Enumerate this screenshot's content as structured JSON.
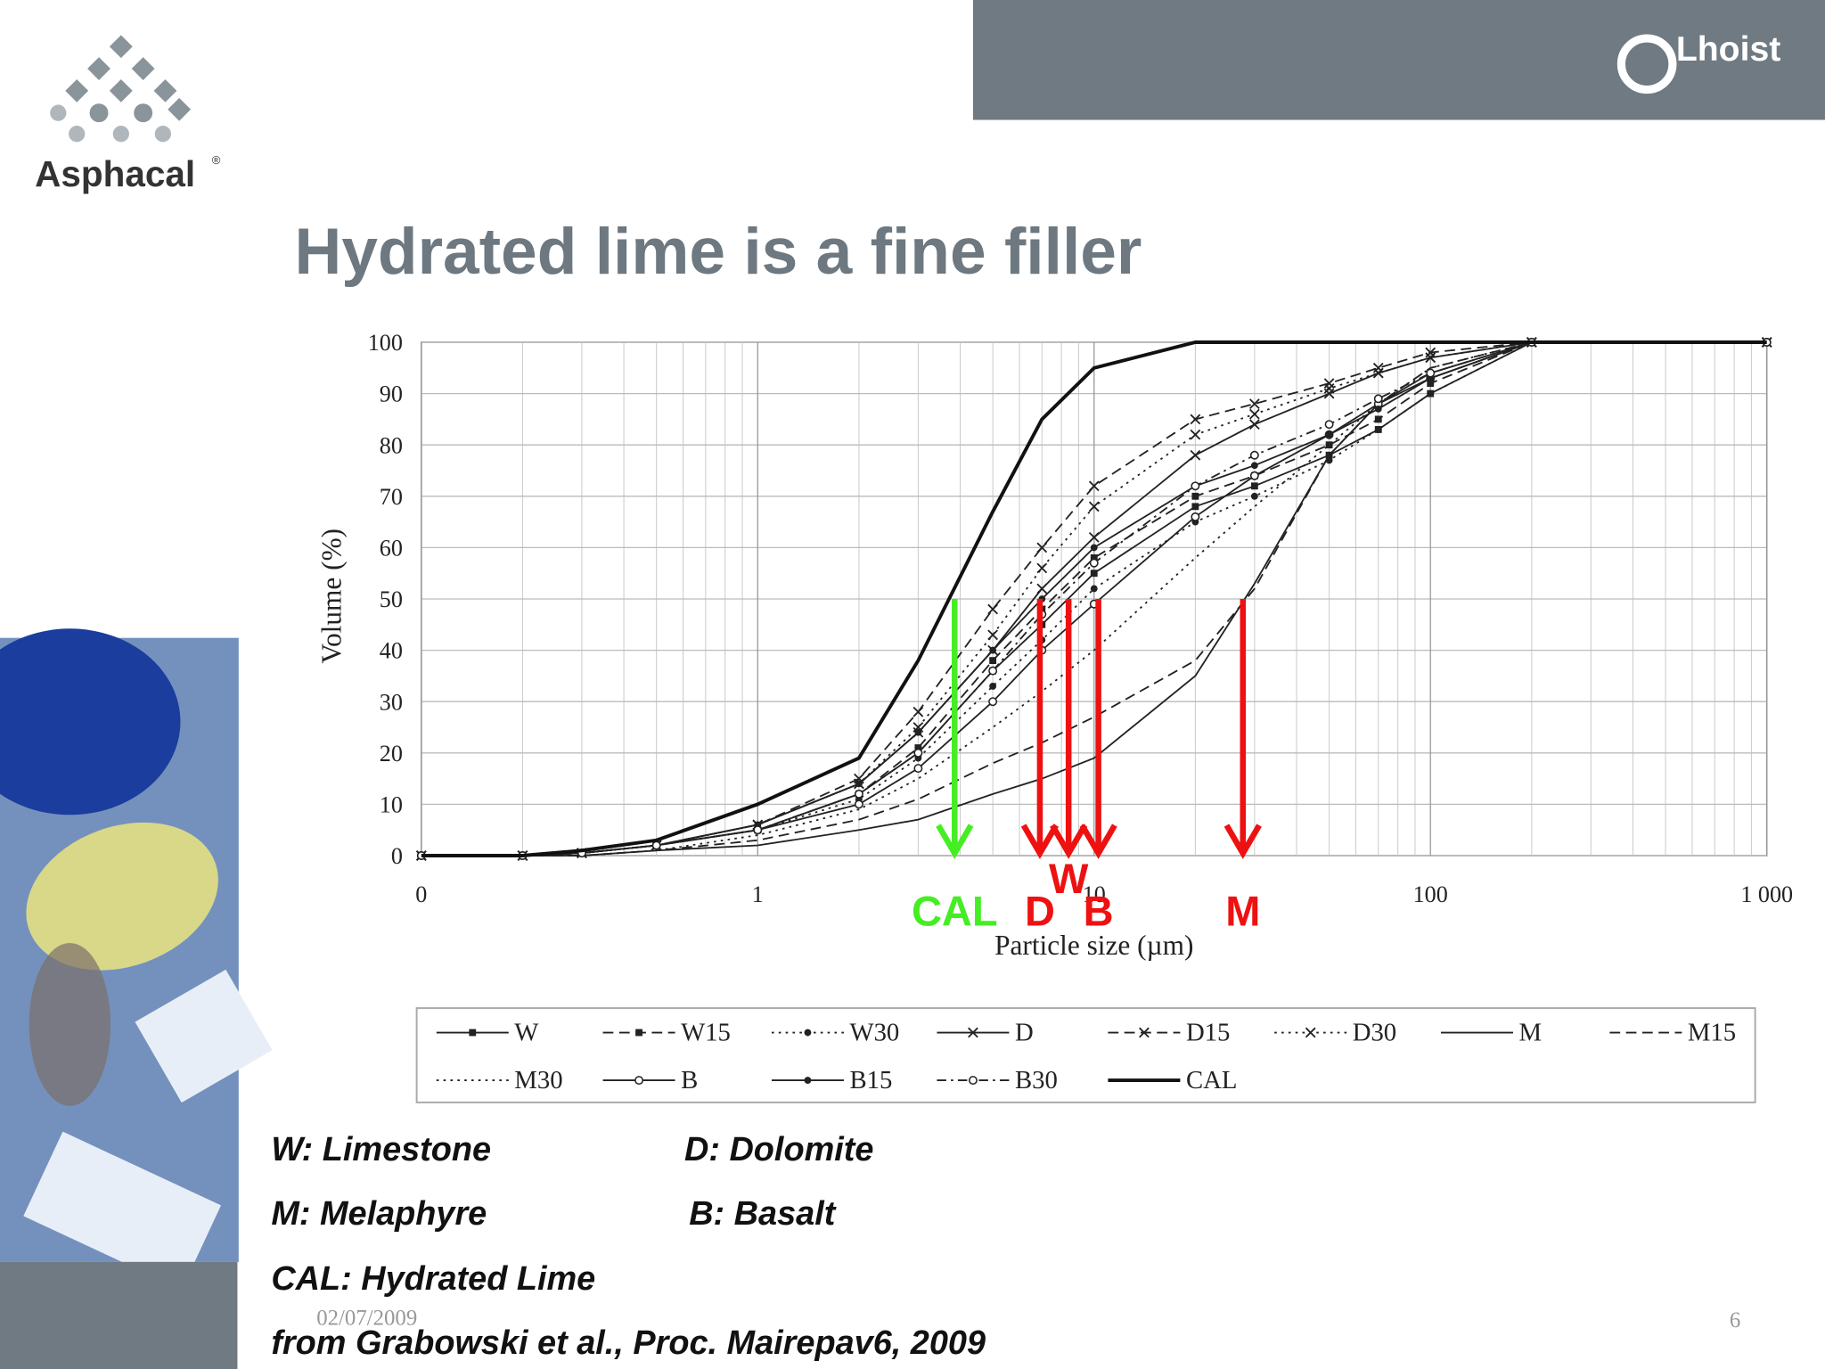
{
  "brand": {
    "logo": "Asphacal",
    "mark": "®",
    "company": "Lhoist"
  },
  "title": "Hydrated lime is a fine filler",
  "chart_data": {
    "type": "line",
    "xlabel": "Particle size (µm)",
    "ylabel": "Volume (%)",
    "log_x": true,
    "grid": true,
    "xlim": [
      0.1,
      1000
    ],
    "xticks": [
      {
        "value": 0.1,
        "label": "0"
      },
      1,
      10,
      100,
      {
        "value": 1000,
        "label": "1 000"
      }
    ],
    "ylim": [
      0,
      100
    ],
    "yticks": [
      0,
      10,
      20,
      30,
      40,
      50,
      60,
      70,
      80,
      90,
      100
    ],
    "x": [
      0.1,
      0.2,
      0.3,
      0.5,
      1,
      2,
      3,
      5,
      7,
      10,
      20,
      30,
      50,
      70,
      100,
      200,
      1000
    ],
    "series": [
      {
        "name": "W",
        "color": "#222222",
        "dash": "solid",
        "marker": "square",
        "values": [
          0,
          0,
          0.5,
          2,
          5,
          12,
          20,
          36,
          45,
          55,
          68,
          72,
          78,
          83,
          90,
          100,
          100
        ]
      },
      {
        "name": "W15",
        "color": "#222222",
        "dash": "dashed",
        "marker": "square",
        "values": [
          0,
          0,
          0.5,
          2,
          5,
          12,
          21,
          38,
          48,
          58,
          70,
          74,
          80,
          85,
          92,
          100,
          100
        ]
      },
      {
        "name": "W30",
        "color": "#222222",
        "dash": "dotted",
        "marker": "dot",
        "values": [
          0,
          0,
          0.5,
          2,
          5,
          11,
          19,
          33,
          42,
          52,
          65,
          70,
          77,
          83,
          90,
          100,
          100
        ]
      },
      {
        "name": "D",
        "color": "#222222",
        "dash": "solid",
        "marker": "x",
        "values": [
          0,
          0,
          0.5,
          2,
          6,
          14,
          24,
          40,
          52,
          62,
          78,
          84,
          90,
          94,
          97,
          100,
          100
        ]
      },
      {
        "name": "D15",
        "color": "#222222",
        "dash": "dashed",
        "marker": "x",
        "values": [
          0,
          0,
          0.5,
          2,
          6,
          15,
          28,
          48,
          60,
          72,
          85,
          88,
          92,
          95,
          98,
          100,
          100
        ]
      },
      {
        "name": "D30",
        "color": "#222222",
        "dash": "dotted",
        "marker": "x",
        "values": [
          0,
          0,
          0.5,
          2,
          6,
          14,
          25,
          43,
          56,
          68,
          82,
          86,
          91,
          94,
          97,
          100,
          100
        ]
      },
      {
        "name": "M",
        "color": "#222222",
        "dash": "solid",
        "marker": null,
        "values": [
          0,
          0,
          0,
          1,
          2,
          5,
          7,
          12,
          15,
          19,
          35,
          53,
          78,
          88,
          94,
          100,
          100
        ]
      },
      {
        "name": "M15",
        "color": "#222222",
        "dash": "dashed",
        "marker": null,
        "values": [
          0,
          0,
          0,
          1,
          3,
          7,
          11,
          18,
          22,
          27,
          38,
          52,
          78,
          88,
          95,
          100,
          100
        ]
      },
      {
        "name": "M30",
        "color": "#222222",
        "dash": "dotted",
        "marker": null,
        "values": [
          0,
          0,
          0,
          1,
          4,
          9,
          15,
          25,
          32,
          40,
          58,
          68,
          80,
          88,
          95,
          100,
          100
        ]
      },
      {
        "name": "B",
        "color": "#222222",
        "dash": "solid",
        "marker": "circle",
        "values": [
          0,
          0,
          0.5,
          2,
          5,
          10,
          17,
          30,
          40,
          49,
          66,
          74,
          82,
          88,
          93,
          100,
          100
        ]
      },
      {
        "name": "B15",
        "color": "#222222",
        "dash": "solid",
        "marker": "dot",
        "values": [
          0,
          0,
          0.5,
          2,
          6,
          14,
          24,
          40,
          50,
          60,
          72,
          76,
          82,
          87,
          93,
          100,
          100
        ]
      },
      {
        "name": "B30",
        "color": "#222222",
        "dash": "dashdot",
        "marker": "circle",
        "values": [
          0,
          0,
          0.5,
          2,
          5,
          12,
          20,
          36,
          47,
          57,
          72,
          78,
          84,
          89,
          94,
          100,
          100
        ]
      },
      {
        "name": "CAL",
        "color": "#111111",
        "dash": "thick",
        "marker": null,
        "values": [
          0,
          0,
          1,
          3,
          10,
          19,
          38,
          67,
          85,
          95,
          100,
          100,
          100,
          100,
          100,
          100,
          100
        ]
      }
    ],
    "annotations": [
      {
        "label": "CAL",
        "x": 3.85,
        "y": 50,
        "color": "#44ee22"
      },
      {
        "label": "D",
        "x": 6.9,
        "y": 50,
        "color": "#ee1111"
      },
      {
        "label": "W",
        "x": 8.4,
        "y": 50,
        "color": "#ee1111"
      },
      {
        "label": "B",
        "x": 10.3,
        "y": 50,
        "color": "#ee1111"
      },
      {
        "label": "M",
        "x": 27.7,
        "y": 50,
        "color": "#ee1111"
      }
    ]
  },
  "notes": [
    "W: Limestone",
    "D: Dolomite",
    "M: Melaphyre",
    "B: Basalt",
    "CAL: Hydrated Lime",
    "from Grabowski et al., Proc. Mairepav6, 2009"
  ],
  "footer": {
    "date": "02/07/2009",
    "page": "6"
  }
}
